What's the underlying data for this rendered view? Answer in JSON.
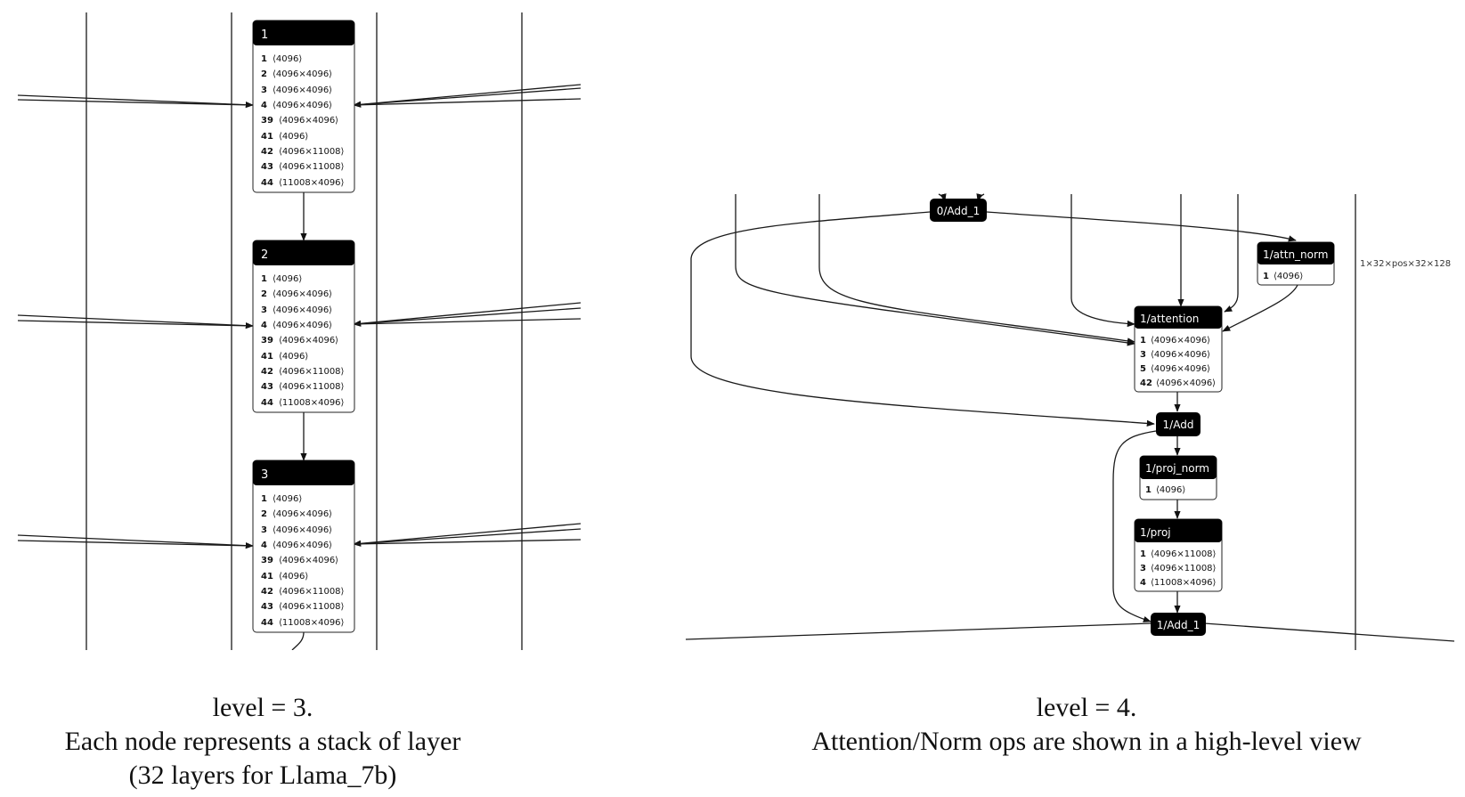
{
  "left_panel": {
    "nodes": [
      {
        "title": "1",
        "params": [
          {
            "k": "1",
            "v": "⟨4096⟩"
          },
          {
            "k": "2",
            "v": "⟨4096×4096⟩"
          },
          {
            "k": "3",
            "v": "⟨4096×4096⟩"
          },
          {
            "k": "4",
            "v": "⟨4096×4096⟩"
          },
          {
            "k": "39",
            "v": "⟨4096×4096⟩"
          },
          {
            "k": "41",
            "v": "⟨4096⟩"
          },
          {
            "k": "42",
            "v": "⟨4096×11008⟩"
          },
          {
            "k": "43",
            "v": "⟨4096×11008⟩"
          },
          {
            "k": "44",
            "v": "⟨11008×4096⟩"
          }
        ]
      },
      {
        "title": "2",
        "params": [
          {
            "k": "1",
            "v": "⟨4096⟩"
          },
          {
            "k": "2",
            "v": "⟨4096×4096⟩"
          },
          {
            "k": "3",
            "v": "⟨4096×4096⟩"
          },
          {
            "k": "4",
            "v": "⟨4096×4096⟩"
          },
          {
            "k": "39",
            "v": "⟨4096×4096⟩"
          },
          {
            "k": "41",
            "v": "⟨4096⟩"
          },
          {
            "k": "42",
            "v": "⟨4096×11008⟩"
          },
          {
            "k": "43",
            "v": "⟨4096×11008⟩"
          },
          {
            "k": "44",
            "v": "⟨11008×4096⟩"
          }
        ]
      },
      {
        "title": "3",
        "params": [
          {
            "k": "1",
            "v": "⟨4096⟩"
          },
          {
            "k": "2",
            "v": "⟨4096×4096⟩"
          },
          {
            "k": "3",
            "v": "⟨4096×4096⟩"
          },
          {
            "k": "4",
            "v": "⟨4096×4096⟩"
          },
          {
            "k": "39",
            "v": "⟨4096×4096⟩"
          },
          {
            "k": "41",
            "v": "⟨4096⟩"
          },
          {
            "k": "42",
            "v": "⟨4096×11008⟩"
          },
          {
            "k": "43",
            "v": "⟨4096×11008⟩"
          },
          {
            "k": "44",
            "v": "⟨11008×4096⟩"
          }
        ]
      }
    ],
    "caption": [
      "level = 3.",
      "Each node represents a stack of layer",
      "(32 layers for Llama_7b)"
    ]
  },
  "right_panel": {
    "ops": {
      "add0": "0/Add_1",
      "add1": "1/Add",
      "add2": "1/Add_1"
    },
    "attn_norm": {
      "title": "1/attn_norm",
      "params": [
        {
          "k": "1",
          "v": "⟨4096⟩"
        }
      ]
    },
    "attention": {
      "title": "1/attention",
      "params": [
        {
          "k": "1",
          "v": "⟨4096×4096⟩"
        },
        {
          "k": "3",
          "v": "⟨4096×4096⟩"
        },
        {
          "k": "5",
          "v": "⟨4096×4096⟩"
        },
        {
          "k": "42",
          "v": "⟨4096×4096⟩"
        }
      ]
    },
    "proj_norm": {
      "title": "1/proj_norm",
      "params": [
        {
          "k": "1",
          "v": "⟨4096⟩"
        }
      ]
    },
    "proj": {
      "title": "1/proj",
      "params": [
        {
          "k": "1",
          "v": "⟨4096×11008⟩"
        },
        {
          "k": "3",
          "v": "⟨4096×11008⟩"
        },
        {
          "k": "4",
          "v": "⟨11008×4096⟩"
        }
      ]
    },
    "side_note": "1×32×pos×32×128",
    "caption": [
      "level = 4.",
      "Attention/Norm ops are shown in a high-level view"
    ]
  }
}
